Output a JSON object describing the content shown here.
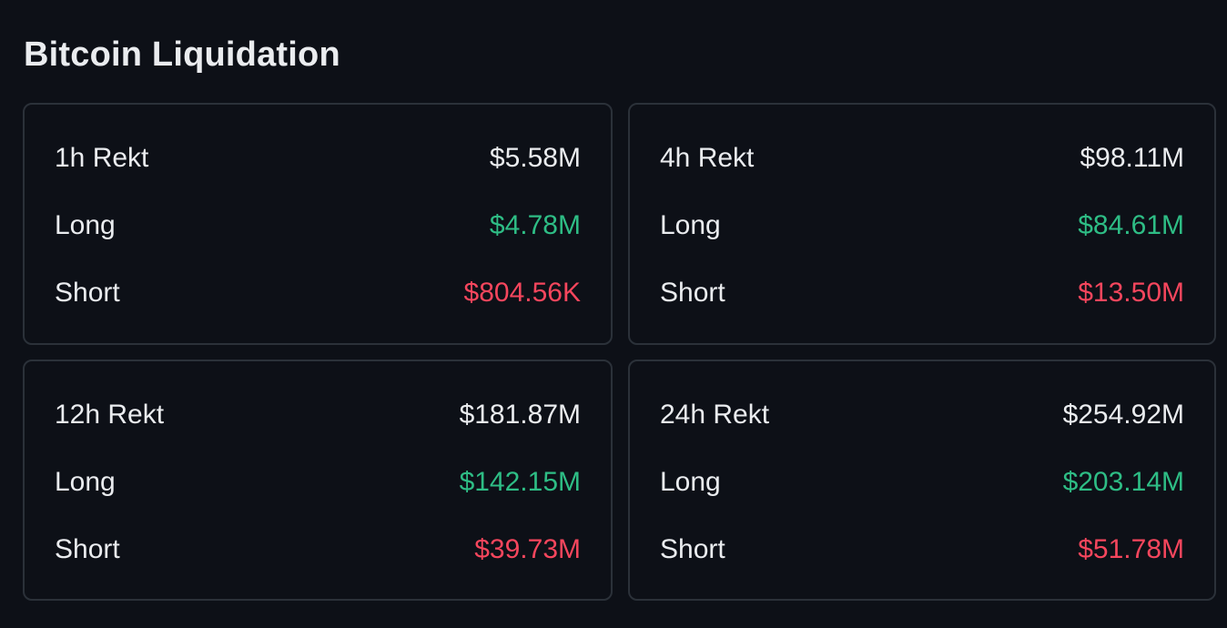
{
  "title": "Bitcoin Liquidation",
  "colors": {
    "background": "#0d1017",
    "border": "#2b3139",
    "text": "#eaecef",
    "long": "#2ebd85",
    "short": "#f6465d"
  },
  "cards": [
    {
      "period": "1h Rekt",
      "total": "$5.58M",
      "long_label": "Long",
      "long": "$4.78M",
      "short_label": "Short",
      "short": "$804.56K"
    },
    {
      "period": "4h Rekt",
      "total": "$98.11M",
      "long_label": "Long",
      "long": "$84.61M",
      "short_label": "Short",
      "short": "$13.50M"
    },
    {
      "period": "12h Rekt",
      "total": "$181.87M",
      "long_label": "Long",
      "long": "$142.15M",
      "short_label": "Short",
      "short": "$39.73M"
    },
    {
      "period": "24h Rekt",
      "total": "$254.92M",
      "long_label": "Long",
      "long": "$203.14M",
      "short_label": "Short",
      "short": "$51.78M"
    }
  ]
}
